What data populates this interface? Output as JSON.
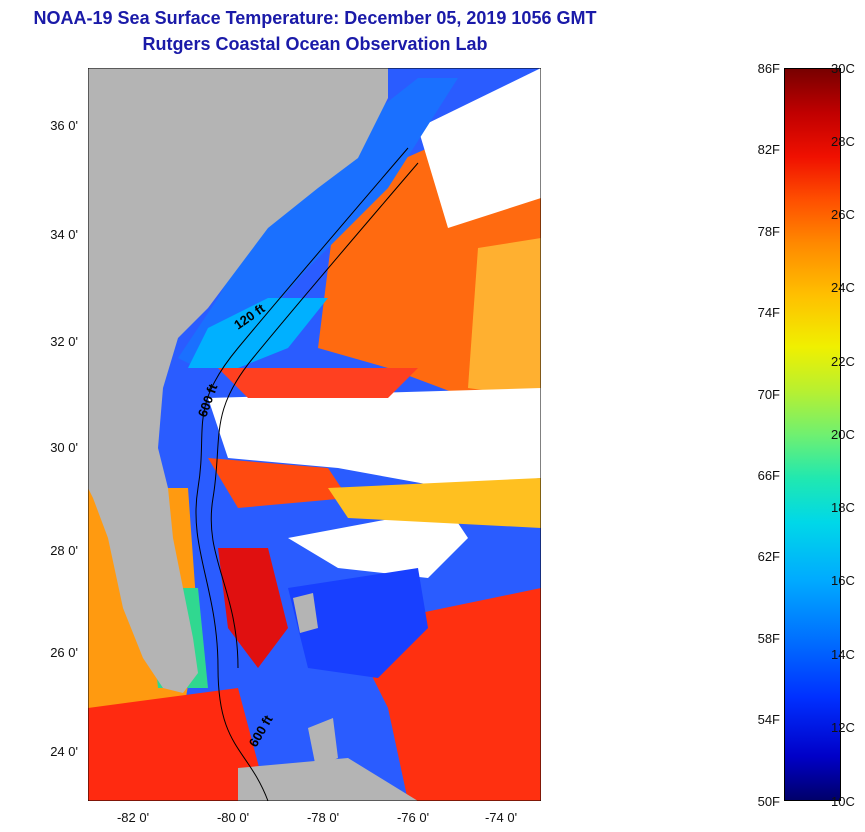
{
  "title": "NOAA-19 Sea Surface Temperature:  December 05, 2019 1056 GMT",
  "subtitle": "Rutgers Coastal Ocean Observation Lab",
  "lat_labels": [
    "36 0'",
    "34 0'",
    "32 0'",
    "30 0'",
    "28 0'",
    "26 0'",
    "24 0'"
  ],
  "lon_labels": [
    "-82 0'",
    "-80 0'",
    "-78 0'",
    "-76 0'",
    "-74 0'"
  ],
  "isobaths": [
    "120 ft",
    "600 ft",
    "600 ft"
  ],
  "colorbar": {
    "fahrenheit": [
      "86F",
      "82F",
      "78F",
      "74F",
      "70F",
      "66F",
      "62F",
      "58F",
      "54F",
      "50F"
    ],
    "celsius": [
      "30C",
      "28C",
      "26C",
      "24C",
      "22C",
      "20C",
      "18C",
      "16C",
      "14C",
      "12C",
      "10C"
    ]
  },
  "colors": {
    "land": "#b4b4b4",
    "cloud": "#ffffff",
    "title": "#1a1aa8"
  }
}
